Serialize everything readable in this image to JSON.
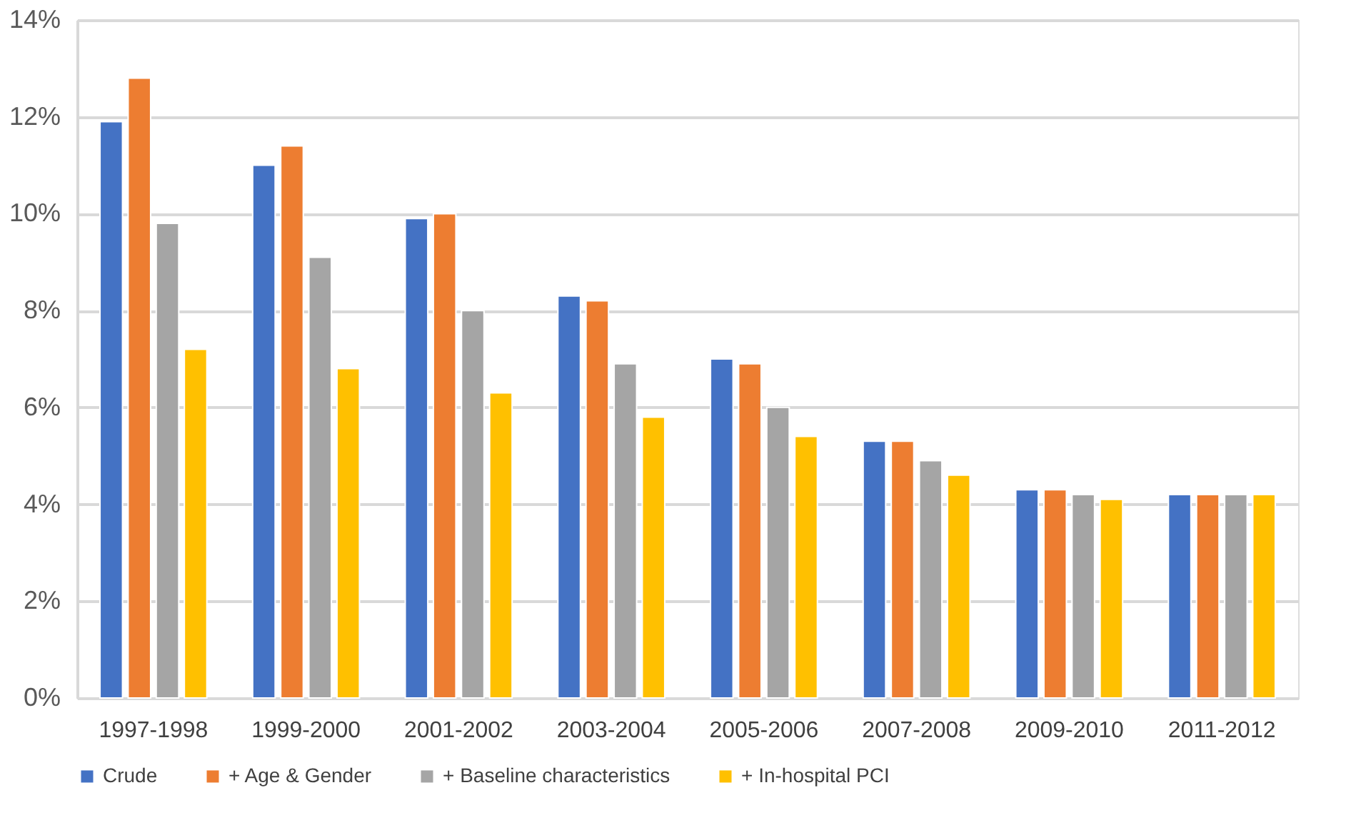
{
  "chart_data": {
    "type": "bar",
    "categories": [
      "1997-1998",
      "1999-2000",
      "2001-2002",
      "2003-2004",
      "2005-2006",
      "2007-2008",
      "2009-2010",
      "2011-2012"
    ],
    "series": [
      {
        "name": "Crude",
        "color": "#4472c4",
        "values": [
          11.9,
          11.0,
          9.9,
          8.3,
          7.0,
          5.3,
          4.3,
          4.2
        ]
      },
      {
        "name": "+ Age & Gender",
        "color": "#ed7d31",
        "values": [
          12.8,
          11.4,
          10.0,
          8.2,
          6.9,
          5.3,
          4.3,
          4.2
        ]
      },
      {
        "name": "+ Baseline characteristics",
        "color": "#a5a5a5",
        "values": [
          9.8,
          9.1,
          8.0,
          6.9,
          6.0,
          4.9,
          4.2,
          4.2
        ]
      },
      {
        "name": "+ In-hospital PCI",
        "color": "#ffc000",
        "values": [
          7.2,
          6.8,
          6.3,
          5.8,
          5.4,
          4.6,
          4.1,
          4.2
        ]
      }
    ],
    "ylim": [
      0,
      14
    ],
    "yticks": [
      {
        "value": 0,
        "label": "0%"
      },
      {
        "value": 2,
        "label": "2%"
      },
      {
        "value": 4,
        "label": "4%"
      },
      {
        "value": 6,
        "label": "6%"
      },
      {
        "value": 8,
        "label": "8%"
      },
      {
        "value": 10,
        "label": "10%"
      },
      {
        "value": 12,
        "label": "12%"
      },
      {
        "value": 14,
        "label": "14%"
      }
    ],
    "grid": "y",
    "legend": "bottom"
  }
}
